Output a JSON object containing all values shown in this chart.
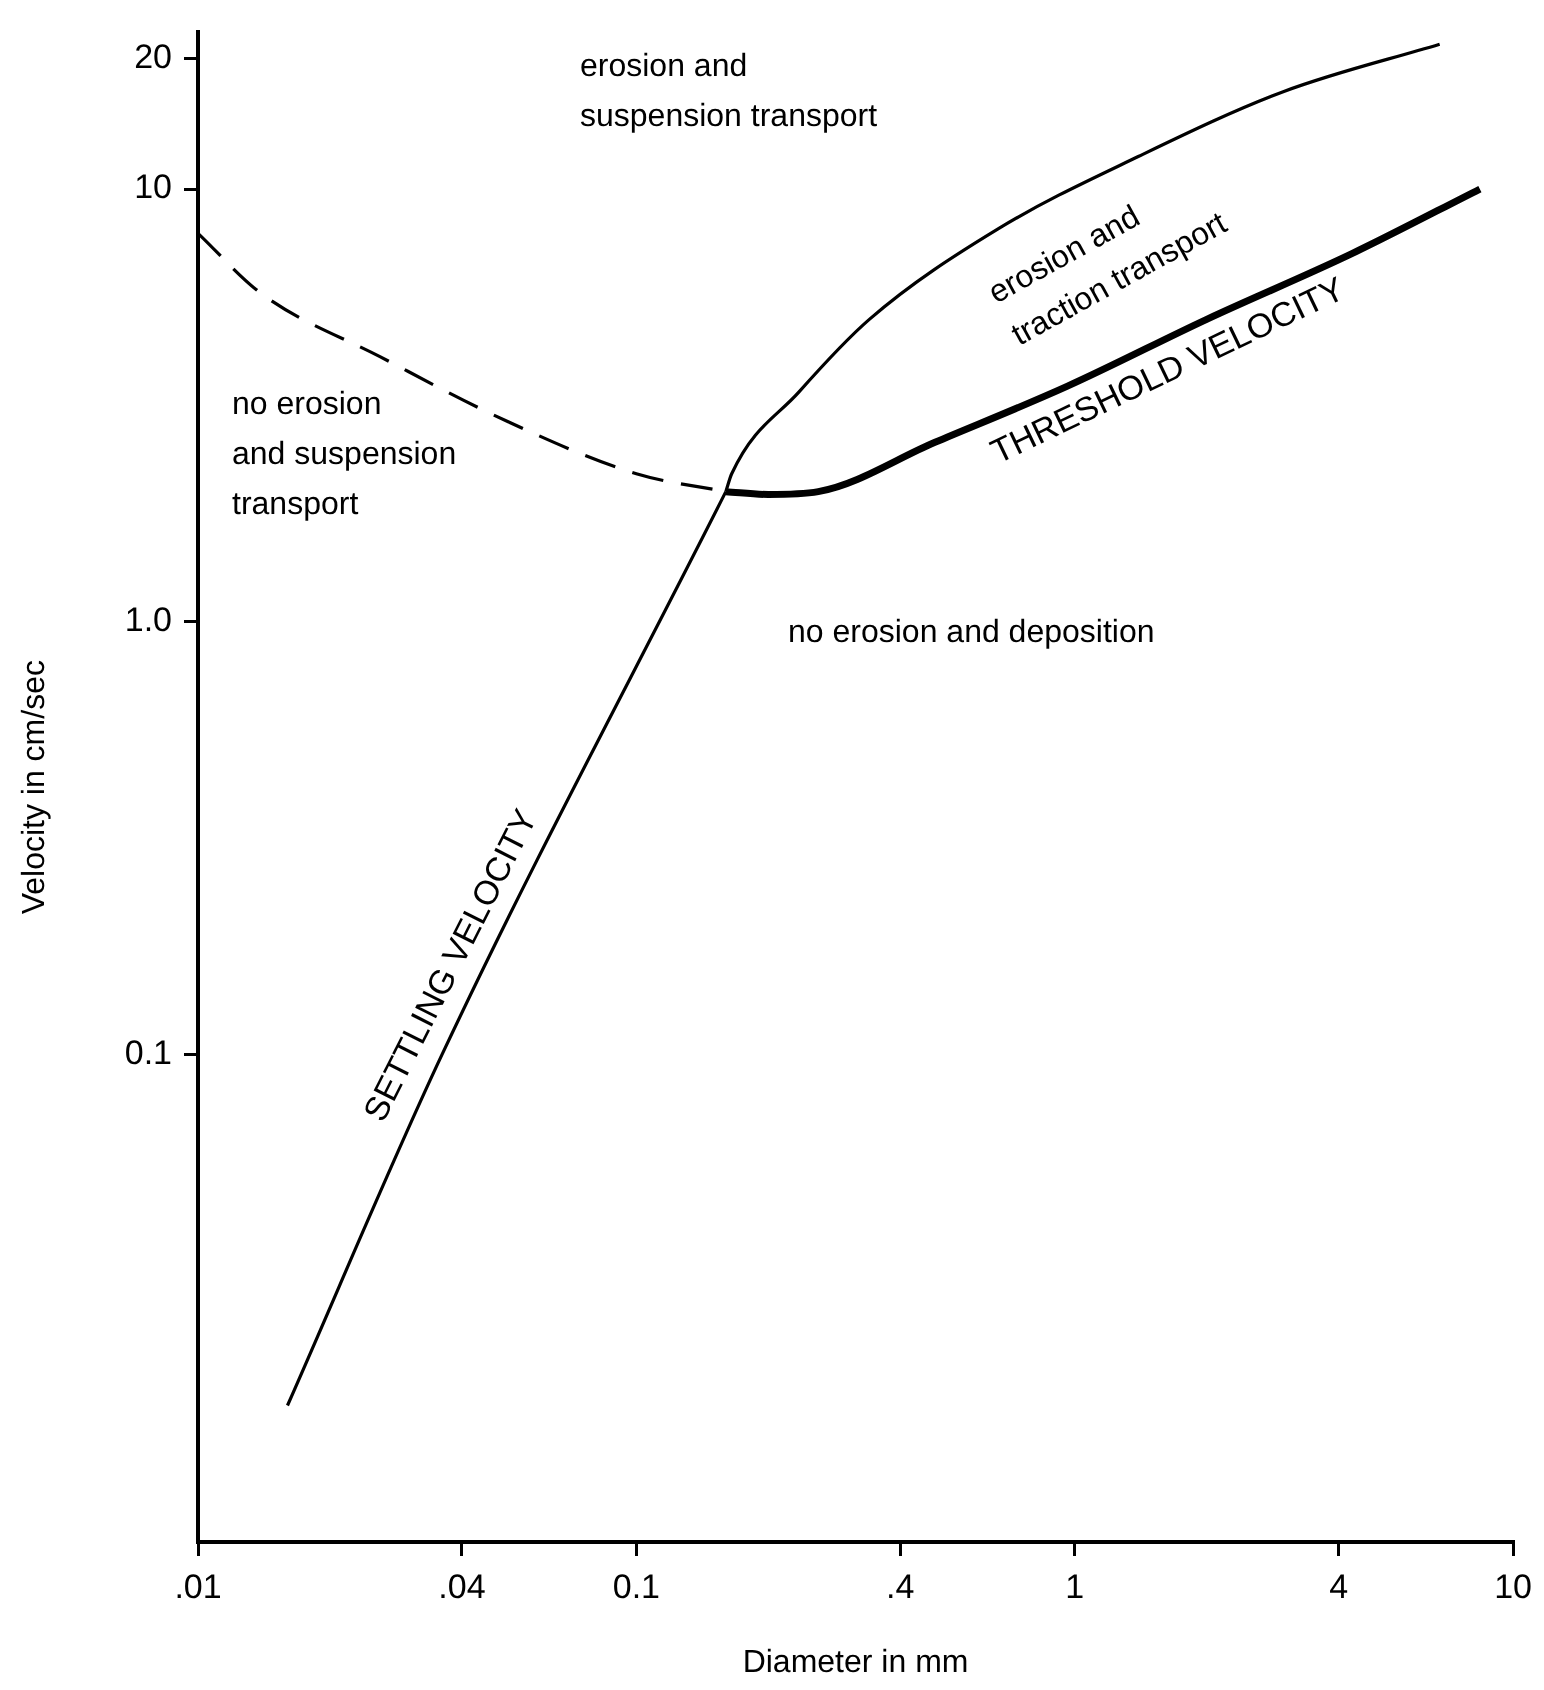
{
  "chart_data": {
    "type": "line",
    "xlabel": "Diameter in mm",
    "ylabel": "Velocity in cm/sec",
    "log": "xy",
    "grid": false,
    "legend": false,
    "marker": "none",
    "xlim": [
      0.01,
      10
    ],
    "xticks": [
      {
        "value": 0.01,
        "label": ".01"
      },
      {
        "value": 0.04,
        "label": ".04"
      },
      {
        "value": 0.1,
        "label": "0.1"
      },
      {
        "value": 0.4,
        "label": ".4"
      },
      1,
      4,
      10
    ],
    "ylim": [
      0.0075,
      23
    ],
    "yticks": [
      {
        "value": 0.1,
        "label": "0.1"
      },
      {
        "value": 1,
        "label": "1.0"
      },
      10,
      20
    ],
    "series": [
      {
        "color": "#000000",
        "line_style": "dashed",
        "x": [
          0.01,
          0.0139,
          0.026,
          0.051,
          0.1,
          0.16
        ],
        "values": [
          7.9,
          5.75,
          4.1,
          2.9,
          2.2,
          2.0
        ]
      },
      {
        "name": "SETTLING VELOCITY",
        "color": "#000000",
        "line_style": "solid",
        "x": [
          0.016,
          0.036,
          0.16
        ],
        "values": [
          0.0155,
          0.1,
          2.0
        ]
      },
      {
        "color": "#000000",
        "line_style": "solid",
        "x": [
          0.16,
          0.165,
          0.235,
          0.34,
          0.67,
          1.4,
          3.0,
          6.8
        ],
        "values": [
          2.0,
          2.2,
          3.4,
          5.0,
          8.1,
          11.9,
          16.8,
          21.6
        ]
      },
      {
        "name": "THRESHOLD VELOCITY",
        "color": "#000000",
        "line_style": "solid",
        "x": [
          0.16,
          0.2,
          0.26,
          0.48,
          0.96,
          2.0,
          4.3,
          8.4
        ],
        "values": [
          2.0,
          1.97,
          2.0,
          2.6,
          3.5,
          5.0,
          7.1,
          10
        ]
      }
    ],
    "annotations": [
      "erosion and\nsuspension transport",
      "erosion and\ntraction transport",
      "no erosion\nand suspension\ntransport",
      "no erosion and deposition"
    ]
  }
}
